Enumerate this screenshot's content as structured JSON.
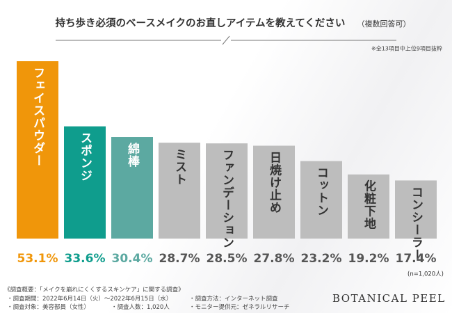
{
  "chart_data": {
    "type": "bar",
    "title": "持ち歩き必須のベースメイクのお直しアイテムを教えてください",
    "subtitle": "（複数回答可）",
    "note": "※全13項目中上位9項目抜粋",
    "sample": "(n=1,020人)",
    "categories": [
      "フェイスパウダー",
      "スポンジ",
      "綿棒",
      "ミスト",
      "ファンデーション",
      "日焼け止め",
      "コットン",
      "化粧下地",
      "コンシーラー"
    ],
    "values": [
      53.1,
      33.6,
      30.4,
      28.7,
      28.5,
      27.8,
      23.2,
      19.2,
      17.4
    ],
    "value_labels": [
      "53.1%",
      "33.6%",
      "30.4%",
      "28.7%",
      "28.5%",
      "27.8%",
      "23.2%",
      "19.2%",
      "17.4%"
    ],
    "colors": [
      "#f0960a",
      "#0f9d8d",
      "#5ca9a1",
      "#bdbdbd",
      "#bdbdbd",
      "#bdbdbd",
      "#bdbdbd",
      "#bdbdbd",
      "#bdbdbd"
    ],
    "label_colors": [
      "#ffffff",
      "#ffffff",
      "#ffffff",
      "#333333",
      "#333333",
      "#333333",
      "#333333",
      "#333333",
      "#333333"
    ]
  },
  "footer": {
    "heading": "《調査概要：「メイクを崩れにくくするスキンケア」に関する調査》",
    "period": "・調査期間：2022年6月14日（火）～2022年6月15日（水）",
    "method": "・調査方法：インターネット調査",
    "target": "・調査対象：美容部員（女性）",
    "count": "・調査人数：1,020人",
    "provider": "・モニター提供元：ゼネラルリサーチ",
    "brand": "BOTANICAL PEEL"
  }
}
